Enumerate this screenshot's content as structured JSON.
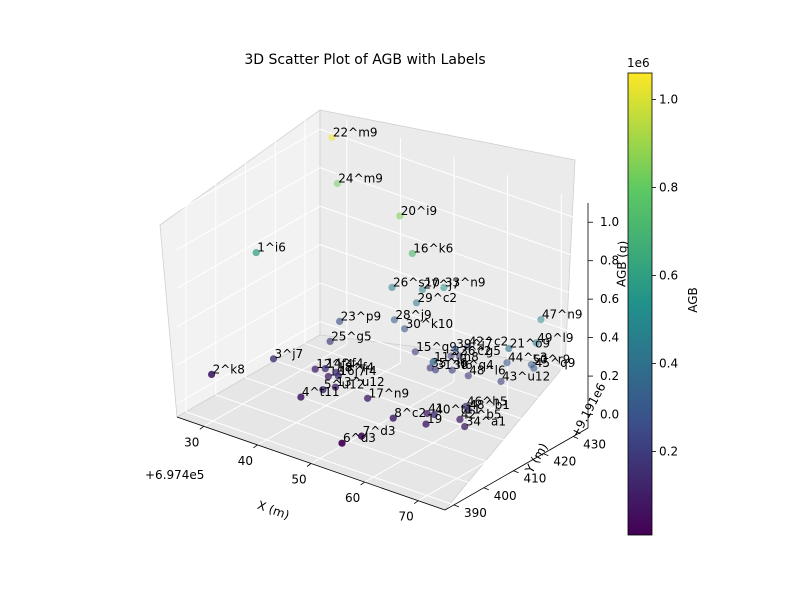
{
  "title": "3D Scatter Plot of AGB with Labels",
  "chart_data": {
    "type": "scatter3d",
    "title": "3D Scatter Plot of AGB with Labels",
    "xlabel": "X (m)",
    "ylabel": "Y (m)",
    "zlabel": "AGB (g)",
    "x_offset_label": "+6.974e5",
    "y_offset_label": "+9.191e6",
    "xticks": [
      "30",
      "40",
      "50",
      "60",
      "70"
    ],
    "yticks": [
      "390",
      "400",
      "410",
      "420",
      "430"
    ],
    "zticks": [
      "0.0",
      "0.2",
      "0.4",
      "0.6",
      "0.8",
      "1.0"
    ],
    "grid": true,
    "colorbar": {
      "label": "AGB",
      "offset_label": "1e6",
      "ticks": [
        "0.2",
        "0.4",
        "0.6",
        "0.8",
        "1.0"
      ],
      "range": [
        0.01,
        1.06
      ],
      "colormap": "viridis"
    },
    "points": [
      {
        "label": "22^m9",
        "x": 30,
        "y": 430,
        "z": 1.05
      },
      {
        "label": "24^m9",
        "x": 31,
        "y": 430,
        "z": 0.82
      },
      {
        "label": "1^i6",
        "x": 27,
        "y": 410,
        "z": 0.6
      },
      {
        "label": "27^j7",
        "x": 48,
        "y": 428,
        "z": 0.45
      },
      {
        "label": "33^n9",
        "x": 52,
        "y": 428,
        "z": 0.5
      },
      {
        "label": "29^c2",
        "x": 48,
        "y": 426,
        "z": 0.4
      },
      {
        "label": "26^s10",
        "x": 44,
        "y": 425,
        "z": 0.45
      },
      {
        "label": "28^j9",
        "x": 45,
        "y": 424,
        "z": 0.3
      },
      {
        "label": "20^i9",
        "x": 46,
        "y": 424,
        "z": 0.85
      },
      {
        "label": "23^p9",
        "x": 37,
        "y": 420,
        "z": 0.25
      },
      {
        "label": "47^n9",
        "x": 69,
        "y": 430,
        "z": 0.48
      },
      {
        "label": "36^g5",
        "x": 56,
        "y": 426,
        "z": 0.2
      },
      {
        "label": "32^c2",
        "x": 55,
        "y": 425,
        "z": 0.2
      },
      {
        "label": "42^c2",
        "x": 57,
        "y": 427,
        "z": 0.25
      },
      {
        "label": "30^k10",
        "x": 48,
        "y": 422,
        "z": 0.3
      },
      {
        "label": "15^q9",
        "x": 50,
        "y": 422,
        "z": 0.2
      },
      {
        "label": "16^k6",
        "x": 50,
        "y": 421,
        "z": 0.72
      },
      {
        "label": "39^j7",
        "x": 58,
        "y": 421,
        "z": 0.3
      },
      {
        "label": "44^c3",
        "x": 66,
        "y": 424,
        "z": 0.28
      },
      {
        "label": "50^r9",
        "x": 70,
        "y": 425,
        "z": 0.3
      },
      {
        "label": "45^q9",
        "x": 71,
        "y": 424,
        "z": 0.3
      },
      {
        "label": "43^u12",
        "x": 66,
        "y": 422,
        "z": 0.2
      },
      {
        "label": "25^g5",
        "x": 38,
        "y": 415,
        "z": 0.2
      },
      {
        "label": "35^l6",
        "x": 55,
        "y": 418,
        "z": 0.2
      },
      {
        "label": "31^l6",
        "x": 56,
        "y": 418,
        "z": 0.2
      },
      {
        "label": "38^q4",
        "x": 58,
        "y": 420,
        "z": 0.2
      },
      {
        "label": "48^l6",
        "x": 61,
        "y": 420,
        "z": 0.2
      },
      {
        "label": "49^l9",
        "x": 72,
        "y": 423,
        "z": 0.45
      },
      {
        "label": "21^o9",
        "x": 68,
        "y": 421,
        "z": 0.4
      },
      {
        "label": "12^f4",
        "x": 38,
        "y": 410,
        "z": 0.1
      },
      {
        "label": "3^j7",
        "x": 33,
        "y": 405,
        "z": 0.15
      },
      {
        "label": "14^f4",
        "x": 41,
        "y": 408,
        "z": 0.15
      },
      {
        "label": "18^f4",
        "x": 43,
        "y": 408,
        "z": 0.15
      },
      {
        "label": "10^j7",
        "x": 41,
        "y": 409,
        "z": 0.1
      },
      {
        "label": "16^f4",
        "x": 44,
        "y": 407,
        "z": 0.15
      },
      {
        "label": "13^u12",
        "x": 44,
        "y": 406,
        "z": 0.1
      },
      {
        "label": "17^n9",
        "x": 50,
        "y": 406,
        "z": 0.1
      },
      {
        "label": "11^m8",
        "x": 60,
        "y": 410,
        "z": 0.35
      },
      {
        "label": "41",
        "x": 60,
        "y": 408,
        "z": 0.1
      },
      {
        "label": "46^h5",
        "x": 65,
        "y": 412,
        "z": 0.15
      },
      {
        "label": "48^b1",
        "x": 66,
        "y": 411,
        "z": 0.15
      },
      {
        "label": "42^b5",
        "x": 65,
        "y": 410,
        "z": 0.1
      },
      {
        "label": "34^a1",
        "x": 67,
        "y": 408,
        "z": 0.1
      },
      {
        "label": "40^t11",
        "x": 63,
        "y": 405,
        "z": 0.15
      },
      {
        "label": "19",
        "x": 62,
        "y": 404,
        "z": 0.1
      },
      {
        "label": "2^k8",
        "x": 27,
        "y": 395,
        "z": 0.1
      },
      {
        "label": "5^u12",
        "x": 45,
        "y": 400,
        "z": 0.15
      },
      {
        "label": "4^t11",
        "x": 42,
        "y": 398,
        "z": 0.1
      },
      {
        "label": "8^c2",
        "x": 57,
        "y": 402,
        "z": 0.1
      },
      {
        "label": "7^d3",
        "x": 55,
        "y": 395,
        "z": 0.05
      },
      {
        "label": "6^d3",
        "x": 53,
        "y": 392,
        "z": 0.02
      }
    ]
  }
}
